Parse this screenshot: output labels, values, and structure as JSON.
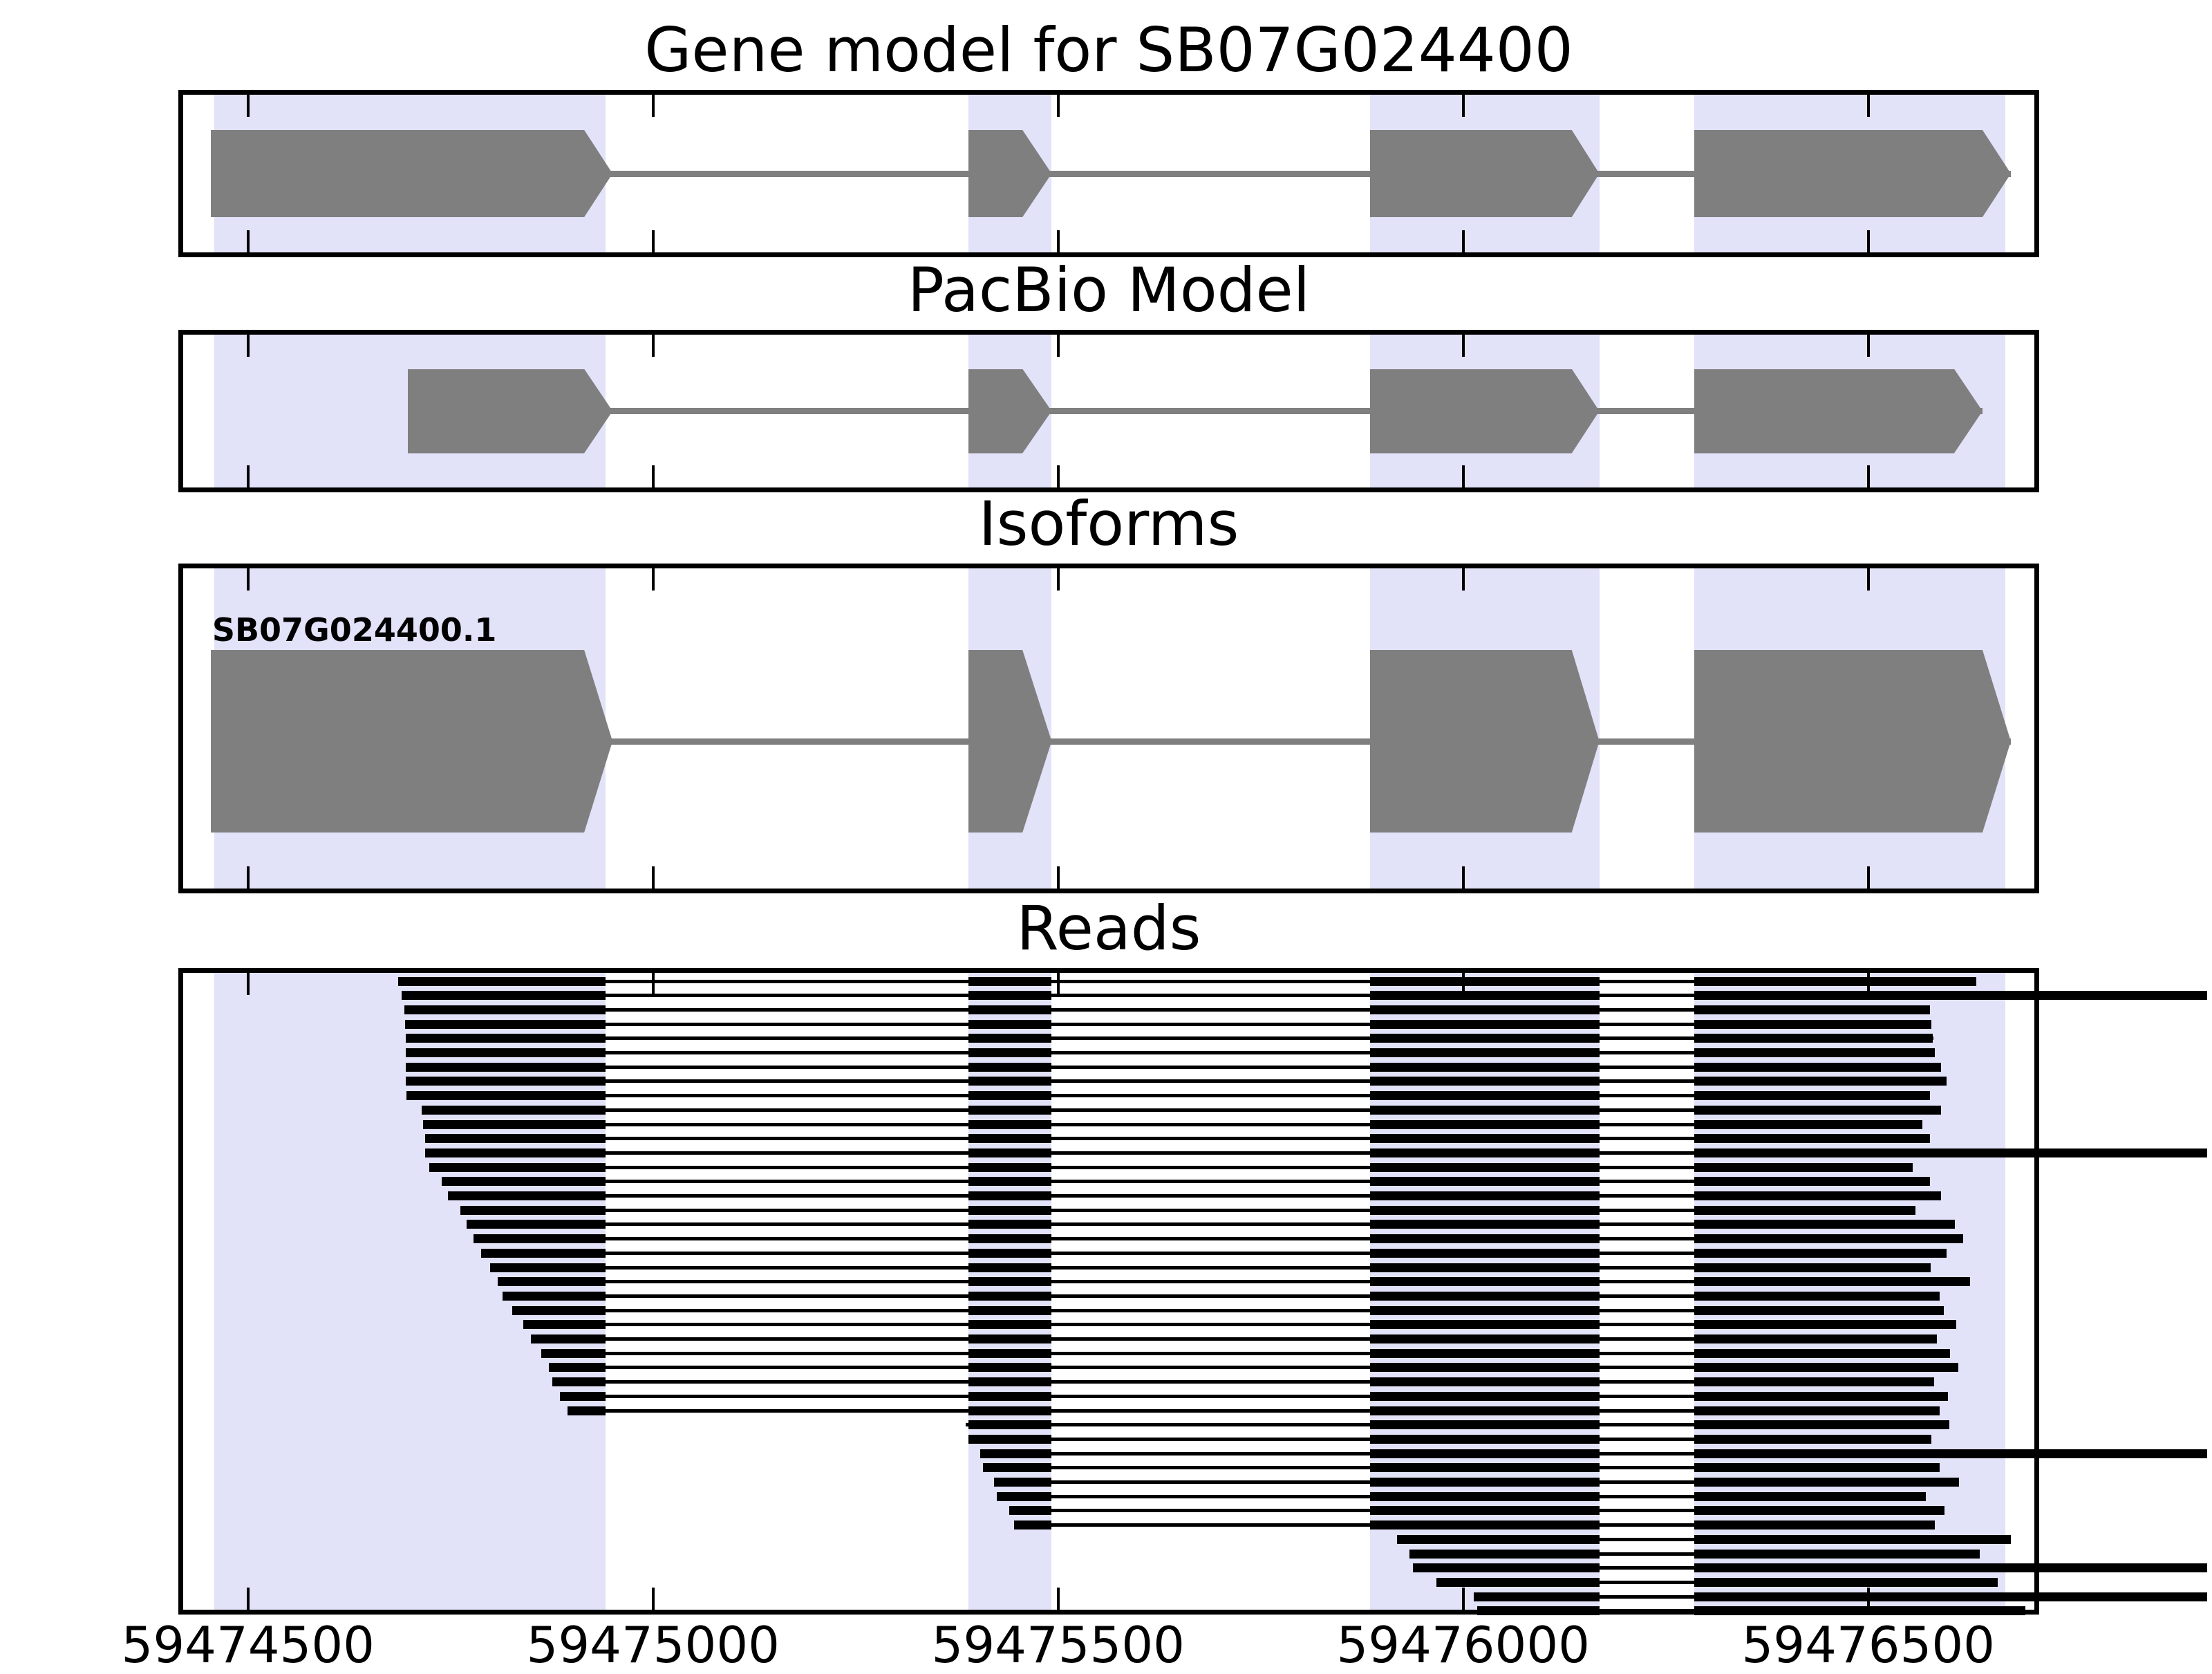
{
  "chart_data": {
    "type": "gene-structure-tracks",
    "gene_id": "SB07G024400",
    "xlim": [
      59474420,
      59476705
    ],
    "x_ticks": [
      {
        "pos": 59474500,
        "label": "59474500"
      },
      {
        "pos": 59475000,
        "label": "59475000"
      },
      {
        "pos": 59475500,
        "label": "59475500"
      },
      {
        "pos": 59476000,
        "label": "59476000"
      },
      {
        "pos": 59476500,
        "label": "59476500"
      }
    ],
    "highlight_regions": [
      [
        59474458,
        59474941
      ],
      [
        59475389,
        59475492
      ],
      [
        59475885,
        59476168
      ],
      [
        59476285,
        59476669
      ]
    ],
    "panels": [
      {
        "key": "gene_model",
        "title": "Gene model for SB07G024400",
        "type": "model",
        "exons": [
          {
            "start": 59474454,
            "body_end": 59474915,
            "tip_end": 59474950
          },
          {
            "start": 59475389,
            "body_end": 59475456,
            "tip_end": 59475492
          },
          {
            "start": 59475885,
            "body_end": 59476134,
            "tip_end": 59476168
          },
          {
            "start": 59476285,
            "body_end": 59476641,
            "tip_end": 59476676
          }
        ]
      },
      {
        "key": "pacbio",
        "title": "PacBio Model",
        "type": "model",
        "exons": [
          {
            "start": 59474697,
            "body_end": 59474915,
            "tip_end": 59474950
          },
          {
            "start": 59475389,
            "body_end": 59475456,
            "tip_end": 59475492
          },
          {
            "start": 59475885,
            "body_end": 59476134,
            "tip_end": 59476168
          },
          {
            "start": 59476285,
            "body_end": 59476606,
            "tip_end": 59476641
          }
        ]
      },
      {
        "key": "isoforms",
        "title": "Isoforms",
        "type": "model",
        "isoform_label": "SB07G024400.1",
        "exons": [
          {
            "start": 59474454,
            "body_end": 59474915,
            "tip_end": 59474950
          },
          {
            "start": 59475389,
            "body_end": 59475456,
            "tip_end": 59475492
          },
          {
            "start": 59475885,
            "body_end": 59476134,
            "tip_end": 59476168
          },
          {
            "start": 59476285,
            "body_end": 59476641,
            "tip_end": 59476676
          }
        ]
      },
      {
        "key": "reads",
        "title": "Reads",
        "type": "reads",
        "exon_blocks": [
          [
            59474454,
            59474941
          ],
          [
            59475389,
            59475492
          ],
          [
            59475885,
            59476168
          ],
          [
            59476285,
            -1
          ]
        ],
        "reads": [
          {
            "s": 59474685,
            "e": 59476633
          },
          {
            "s": 59474690,
            "e": 59476918
          },
          {
            "s": 59474693,
            "e": 59476576
          },
          {
            "s": 59474694,
            "e": 59476578
          },
          {
            "s": 59474695,
            "e": 59476580
          },
          {
            "s": 59474695,
            "e": 59476582
          },
          {
            "s": 59474695,
            "e": 59476590
          },
          {
            "s": 59474695,
            "e": 59476597
          },
          {
            "s": 59474696,
            "e": 59476576
          },
          {
            "s": 59474714,
            "e": 59476590
          },
          {
            "s": 59474716,
            "e": 59476567
          },
          {
            "s": 59474719,
            "e": 59476576
          },
          {
            "s": 59474719,
            "e": 59476918
          },
          {
            "s": 59474724,
            "e": 59476555
          },
          {
            "s": 59474739,
            "e": 59476576
          },
          {
            "s": 59474747,
            "e": 59476590
          },
          {
            "s": 59474762,
            "e": 59476558
          },
          {
            "s": 59474770,
            "e": 59476607
          },
          {
            "s": 59474778,
            "e": 59476617
          },
          {
            "s": 59474788,
            "e": 59476597
          },
          {
            "s": 59474799,
            "e": 59476577
          },
          {
            "s": 59474808,
            "e": 59476626
          },
          {
            "s": 59474814,
            "e": 59476588
          },
          {
            "s": 59474826,
            "e": 59476593
          },
          {
            "s": 59474840,
            "e": 59476609
          },
          {
            "s": 59474849,
            "e": 59476585
          },
          {
            "s": 59474862,
            "e": 59476601
          },
          {
            "s": 59474871,
            "e": 59476611
          },
          {
            "s": 59474876,
            "e": 59476581
          },
          {
            "s": 59474885,
            "e": 59476598
          },
          {
            "s": 59474894,
            "e": 59476588
          },
          {
            "s": 59475386,
            "e": 59476600
          },
          {
            "s": 59475389,
            "e": 59476578
          },
          {
            "s": 59475404,
            "e": 59476918
          },
          {
            "s": 59475407,
            "e": 59476588
          },
          {
            "s": 59475421,
            "e": 59476612
          },
          {
            "s": 59475424,
            "e": 59476571
          },
          {
            "s": 59475440,
            "e": 59476594
          },
          {
            "s": 59475446,
            "e": 59476582
          },
          {
            "s": 59475918,
            "e": 59476676
          },
          {
            "s": 59475934,
            "e": 59476638
          },
          {
            "s": 59475938,
            "e": 59476918
          },
          {
            "s": 59475967,
            "e": 59476660
          },
          {
            "s": 59476013,
            "e": 59476918
          },
          {
            "s": 59476017,
            "e": 59476694
          }
        ]
      }
    ]
  },
  "colors": {
    "background": "#ffffff",
    "band": "#e2e2f9",
    "exon": "#7f7f7f",
    "intron_line": "#7f7f7f",
    "read": "#000000",
    "frame": "#000000",
    "text": "#000000"
  }
}
